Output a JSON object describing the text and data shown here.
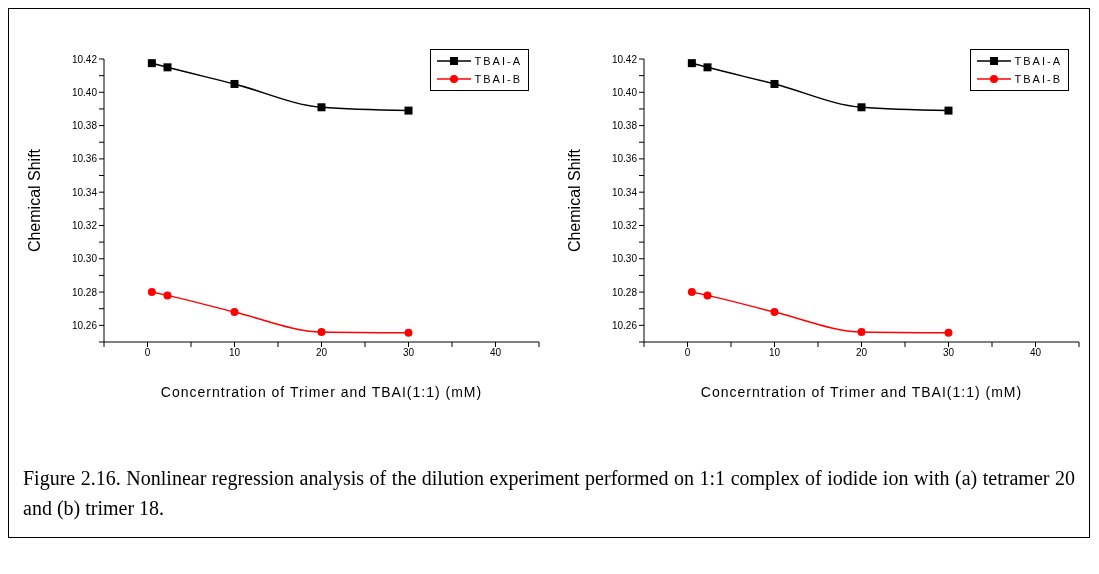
{
  "chart_data": [
    {
      "type": "line",
      "xlabel": "Concerntration of Trimer and TBAI(1:1) (mM)",
      "ylabel": "Chemical Shift",
      "x": [
        0.5,
        2.3,
        10,
        20,
        30
      ],
      "series": [
        {
          "name": "TBAI-A",
          "color": "#000000",
          "marker": "square",
          "values": [
            10.4175,
            10.415,
            10.405,
            10.391,
            10.389
          ]
        },
        {
          "name": "TBAI-B",
          "color": "#ff0000",
          "marker": "circle",
          "values": [
            10.28,
            10.278,
            10.268,
            10.256,
            10.2555
          ]
        }
      ],
      "xlim": [
        -5,
        45
      ],
      "xticks": [
        {
          "value": -5,
          "label": null
        },
        0,
        {
          "value": 5,
          "label": null
        },
        10,
        {
          "value": 15,
          "label": null
        },
        20,
        {
          "value": 25,
          "label": null
        },
        30,
        {
          "value": 35,
          "label": null
        },
        40,
        {
          "value": 45,
          "label": null
        }
      ],
      "ylim": [
        10.25,
        10.42
      ],
      "yticks": [
        {
          "value": 10.25,
          "label": null
        },
        10.26,
        {
          "value": 10.27,
          "label": null
        },
        10.28,
        {
          "value": 10.29,
          "label": null
        },
        {
          "value": 10.3,
          "label": "10.30"
        },
        {
          "value": 10.31,
          "label": null
        },
        10.32,
        {
          "value": 10.33,
          "label": null
        },
        10.34,
        {
          "value": 10.35,
          "label": null
        },
        10.36,
        {
          "value": 10.37,
          "label": null
        },
        10.38,
        {
          "value": 10.39,
          "label": null
        },
        {
          "value": 10.4,
          "label": "10.40"
        },
        {
          "value": 10.41,
          "label": null
        },
        10.42
      ],
      "legend": "top right",
      "grid": false,
      "annotations": [
        "Figure 2.16. Nonlinear regression analysis of the dilution experiment performed on 1:1 complex of iodide ion with (a) tetramer 20 and (b) trimer 18."
      ]
    },
    {
      "type": "line",
      "xlabel": "Concerntration of Trimer and TBAI(1:1) (mM)",
      "ylabel": "Chemical Shift",
      "x": [
        0.5,
        2.3,
        10,
        20,
        30
      ],
      "series": [
        {
          "name": "TBAI-A",
          "color": "#000000",
          "marker": "square",
          "values": [
            10.4175,
            10.415,
            10.405,
            10.391,
            10.389
          ]
        },
        {
          "name": "TBAI-B",
          "color": "#ff0000",
          "marker": "circle",
          "values": [
            10.28,
            10.278,
            10.268,
            10.256,
            10.2555
          ]
        }
      ],
      "xlim": [
        -5,
        45
      ],
      "xticks": [
        {
          "value": -5,
          "label": null
        },
        0,
        {
          "value": 5,
          "label": null
        },
        10,
        {
          "value": 15,
          "label": null
        },
        20,
        {
          "value": 25,
          "label": null
        },
        30,
        {
          "value": 35,
          "label": null
        },
        40,
        {
          "value": 45,
          "label": null
        }
      ],
      "ylim": [
        10.25,
        10.42
      ],
      "yticks": [
        {
          "value": 10.25,
          "label": null
        },
        10.26,
        {
          "value": 10.27,
          "label": null
        },
        10.28,
        {
          "value": 10.29,
          "label": null
        },
        {
          "value": 10.3,
          "label": "10.30"
        },
        {
          "value": 10.31,
          "label": null
        },
        10.32,
        {
          "value": 10.33,
          "label": null
        },
        10.34,
        {
          "value": 10.35,
          "label": null
        },
        10.36,
        {
          "value": 10.37,
          "label": null
        },
        10.38,
        {
          "value": 10.39,
          "label": null
        },
        {
          "value": 10.4,
          "label": "10.40"
        },
        {
          "value": 10.41,
          "label": null
        },
        10.42
      ],
      "legend": "top right",
      "grid": false
    }
  ]
}
